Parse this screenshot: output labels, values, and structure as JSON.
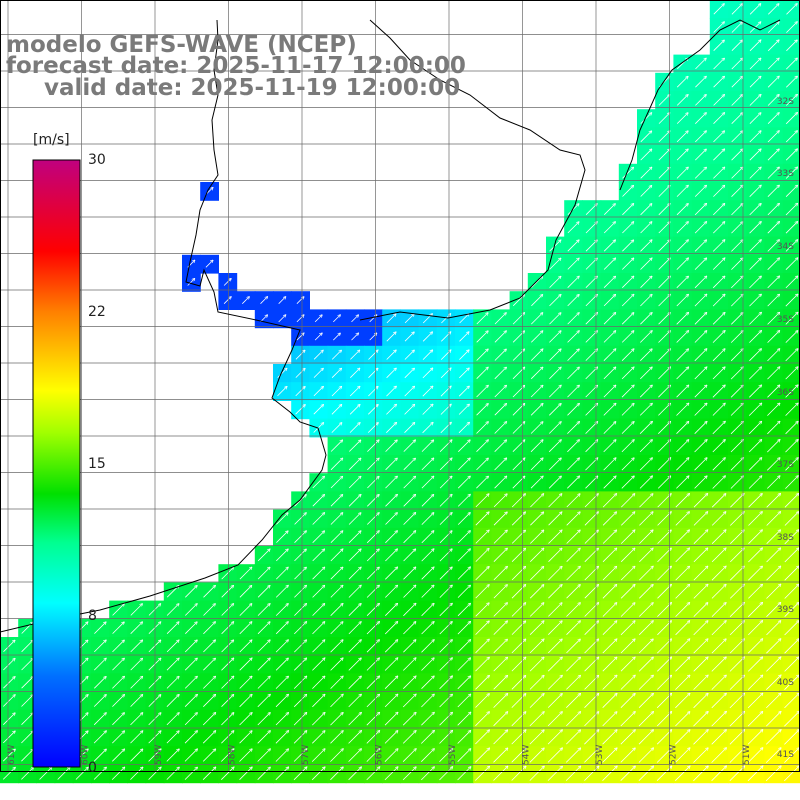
{
  "title": {
    "line1": "modelo GEFS-WAVE (NCEP)",
    "line2": "forecast date: 2025-11-17 12:00:00",
    "line3": "valid date: 2025-11-19 12:00:00"
  },
  "colorbar": {
    "unit": "[m/s]",
    "ticks": [
      "30",
      "22",
      "15",
      "8",
      "0"
    ],
    "tick_values": [
      30,
      22,
      15,
      8,
      0
    ],
    "colors": [
      "#0000ff",
      "#0080ff",
      "#00ffff",
      "#00ff80",
      "#00e000",
      "#80ff00",
      "#ffff00",
      "#ffa000",
      "#ff4000",
      "#ff0000",
      "#ff0060",
      "#c0007f"
    ]
  },
  "map": {
    "lat_labels": [
      "32S",
      "33S",
      "34S",
      "35S",
      "36S",
      "37S",
      "38S",
      "39S",
      "40S",
      "41S"
    ],
    "lon_labels": [
      "61W",
      "60W",
      "59W",
      "58W",
      "57W",
      "56W",
      "55W",
      "54W",
      "53W",
      "52W",
      "51W"
    ],
    "grid": true,
    "land_color": "#ffffff",
    "coast_color": "#000000",
    "arrow_color": "#ffffff",
    "arrow_direction": "towards northeast"
  }
}
